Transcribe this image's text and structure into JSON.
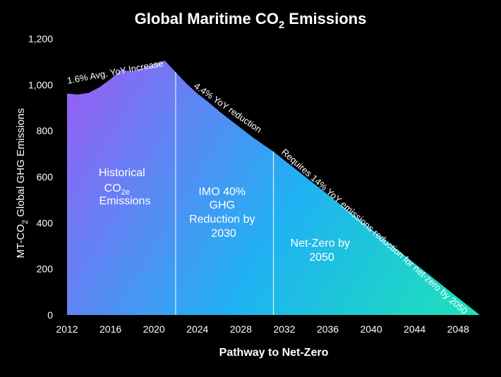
{
  "chart_data": {
    "type": "area",
    "title": "Global Maritime CO",
    "title_sub": "2",
    "title_after": " Emissions",
    "xlabel": "Pathway to Net-Zero",
    "ylabel_parts": [
      "MT-CO",
      "2",
      " Global GHG Emissions"
    ],
    "x_ticks": [
      2012,
      2016,
      2020,
      2024,
      2028,
      2032,
      2036,
      2040,
      2044,
      2048
    ],
    "y_ticks": [
      0,
      200,
      400,
      600,
      800,
      1000,
      1200
    ],
    "y_tick_labels": [
      "0",
      "200",
      "400",
      "600",
      "800",
      "1,000",
      "1,200"
    ],
    "xlim": [
      2012,
      2050
    ],
    "ylim": [
      0,
      1200
    ],
    "historical": {
      "x": [
        2012,
        2013,
        2014,
        2015,
        2016,
        2017,
        2018,
        2019,
        2020,
        2021
      ],
      "y": [
        962,
        958,
        965,
        990,
        1025,
        1065,
        1058,
        1072,
        1090,
        1105
      ]
    },
    "reduction_to_2030": {
      "x": [
        2022,
        2023,
        2024,
        2025,
        2026,
        2027,
        2028,
        2029,
        2030,
        2031
      ],
      "y": [
        1055,
        1005,
        962,
        925,
        885,
        848,
        812,
        775,
        742,
        710
      ]
    },
    "net_zero_path": {
      "x": [
        2031,
        2050
      ],
      "y": [
        710,
        0
      ]
    },
    "dividers": [
      2022,
      2031
    ],
    "region_labels": {
      "historical": [
        "Historical",
        "CO",
        "2e",
        "Emissions"
      ],
      "imo": [
        "IMO 40%",
        "GHG",
        "Reduction by",
        "2030"
      ],
      "netzero": [
        "Net-Zero by",
        "2050"
      ]
    },
    "annotations": {
      "increase": "1.6% Avg. YoY Increase",
      "reduction": "4.4% YoY reduction",
      "required": "Requires 14% YoY emissions reduction for net-zero by 2050"
    },
    "colors": {
      "background": "#000000",
      "gradient_start": "#9a5cf5",
      "gradient_mid": "#1fb2f2",
      "gradient_end": "#1de3b6",
      "text": "#ffffff"
    }
  }
}
